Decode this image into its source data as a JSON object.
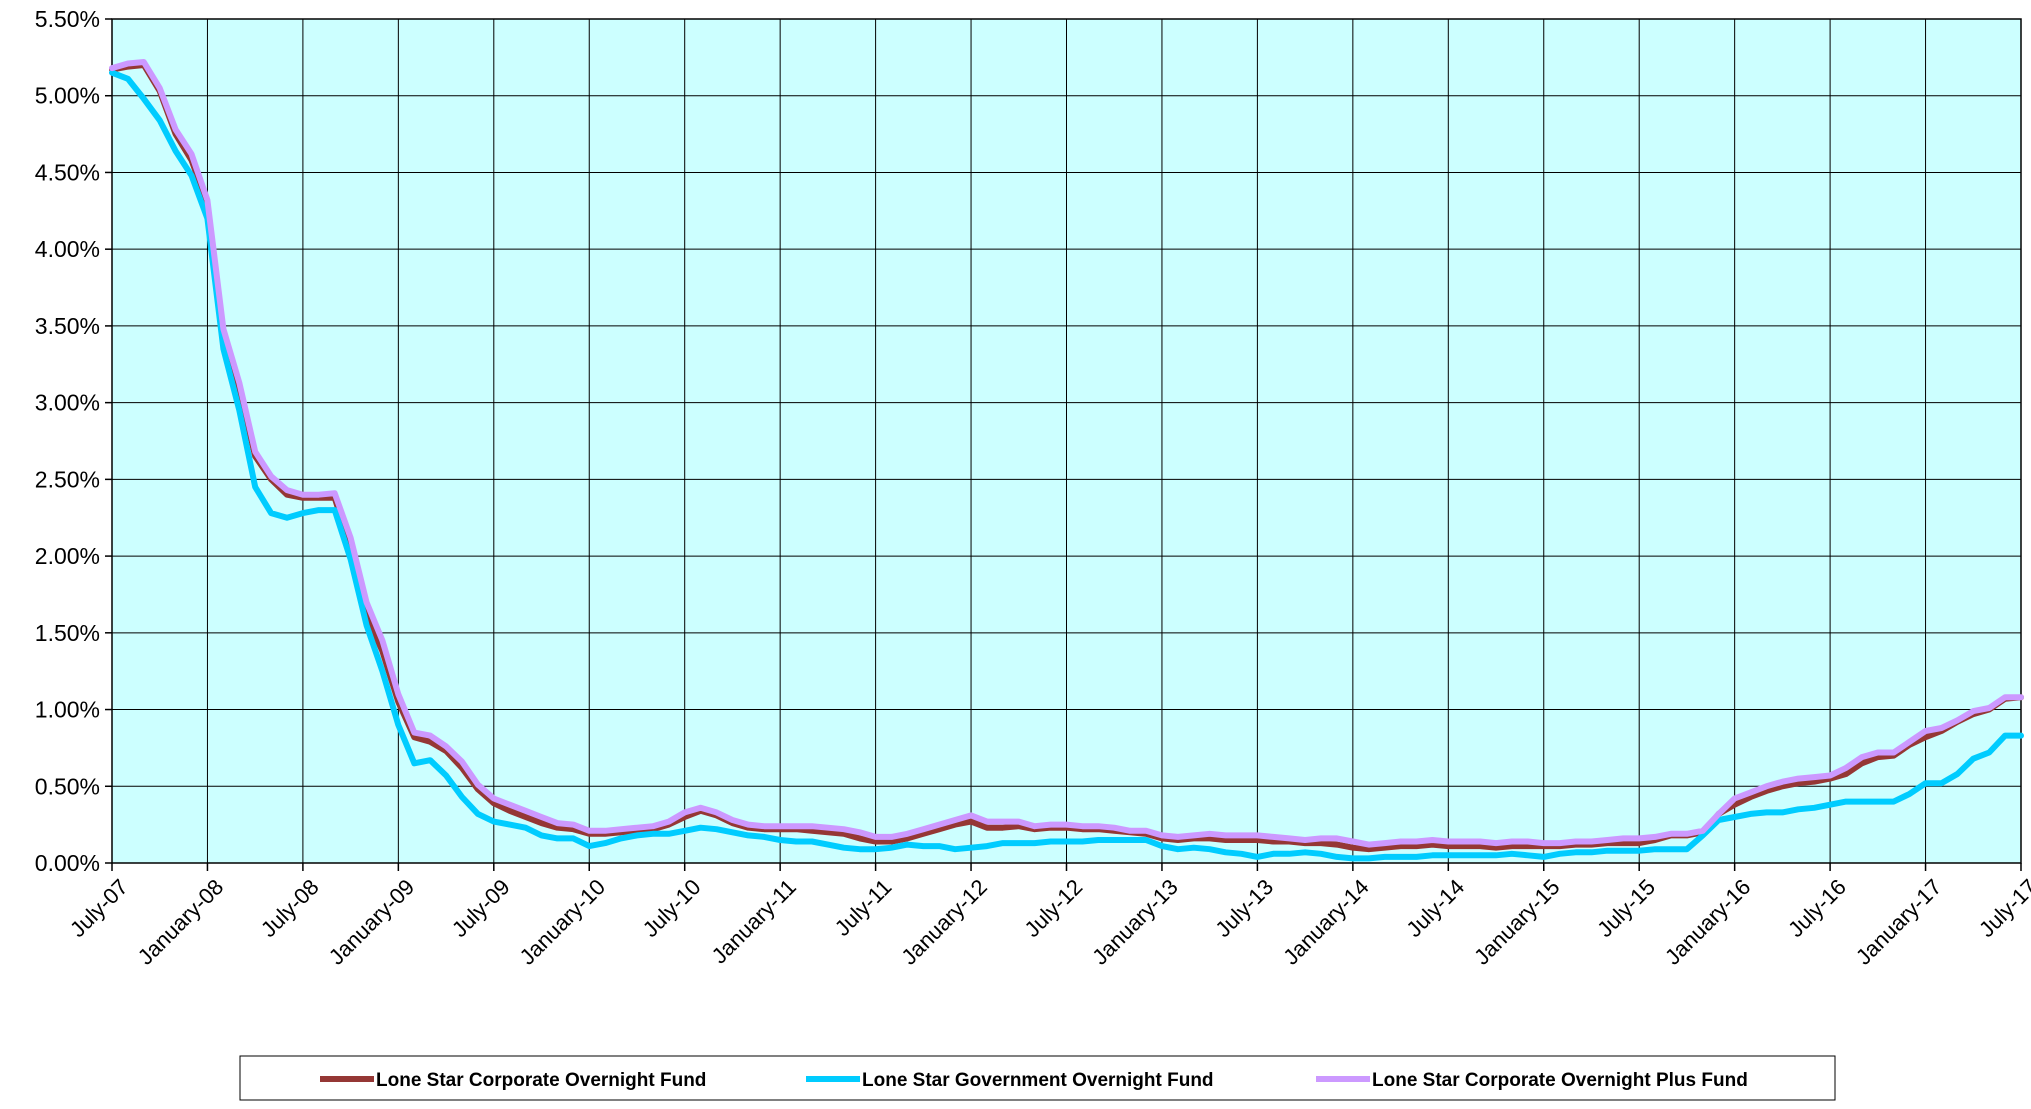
{
  "chart_data": {
    "type": "line",
    "title": "",
    "xlabel": "",
    "ylabel": "",
    "ylim": [
      0,
      5.5
    ],
    "grid": true,
    "plot_background": "#ccffff",
    "legend_position": "bottom",
    "x_ticks": [
      "July-07",
      "January-08",
      "July-08",
      "January-09",
      "July-09",
      "January-10",
      "July-10",
      "January-11",
      "July-11",
      "January-12",
      "July-12",
      "January-13",
      "July-13",
      "January-14",
      "July-14",
      "January-15",
      "July-15",
      "January-16",
      "July-16",
      "January-17",
      "July-17"
    ],
    "y_ticks": [
      "0.00%",
      "0.50%",
      "1.00%",
      "1.50%",
      "2.00%",
      "2.50%",
      "3.00%",
      "3.50%",
      "4.00%",
      "4.50%",
      "5.00%",
      "5.50%"
    ],
    "series": [
      {
        "name": "Lone Star Corporate Overnight Fund",
        "color": "#953735",
        "values": [
          5.17,
          5.19,
          5.2,
          5.03,
          4.75,
          4.58,
          4.3,
          3.45,
          3.1,
          2.65,
          2.5,
          2.4,
          2.38,
          2.38,
          2.38,
          2.05,
          1.62,
          1.38,
          1.05,
          0.82,
          0.79,
          0.73,
          0.62,
          0.48,
          0.39,
          0.34,
          0.3,
          0.26,
          0.23,
          0.22,
          0.19,
          0.19,
          0.2,
          0.21,
          0.22,
          0.25,
          0.3,
          0.34,
          0.31,
          0.26,
          0.23,
          0.22,
          0.22,
          0.22,
          0.21,
          0.2,
          0.19,
          0.16,
          0.14,
          0.14,
          0.16,
          0.19,
          0.22,
          0.25,
          0.27,
          0.23,
          0.23,
          0.24,
          0.22,
          0.23,
          0.23,
          0.22,
          0.22,
          0.21,
          0.2,
          0.19,
          0.16,
          0.15,
          0.16,
          0.16,
          0.15,
          0.15,
          0.15,
          0.14,
          0.14,
          0.13,
          0.13,
          0.12,
          0.1,
          0.09,
          0.1,
          0.11,
          0.11,
          0.12,
          0.11,
          0.11,
          0.11,
          0.1,
          0.11,
          0.11,
          0.11,
          0.11,
          0.12,
          0.12,
          0.13,
          0.13,
          0.13,
          0.15,
          0.18,
          0.18,
          0.2,
          0.32,
          0.38,
          0.43,
          0.47,
          0.5,
          0.52,
          0.53,
          0.55,
          0.58,
          0.65,
          0.69,
          0.7,
          0.77,
          0.82,
          0.86,
          0.92,
          0.97,
          1.0,
          1.07,
          1.08
        ]
      },
      {
        "name": "Lone Star Government Overnight Fund",
        "color": "#00ccff",
        "values": [
          5.15,
          5.11,
          4.98,
          4.84,
          4.64,
          4.48,
          4.2,
          3.35,
          2.95,
          2.45,
          2.28,
          2.25,
          2.28,
          2.3,
          2.3,
          1.98,
          1.55,
          1.25,
          0.9,
          0.65,
          0.67,
          0.57,
          0.43,
          0.32,
          0.27,
          0.25,
          0.23,
          0.18,
          0.16,
          0.16,
          0.11,
          0.13,
          0.16,
          0.18,
          0.19,
          0.19,
          0.21,
          0.23,
          0.22,
          0.2,
          0.18,
          0.17,
          0.15,
          0.14,
          0.14,
          0.12,
          0.1,
          0.09,
          0.09,
          0.1,
          0.12,
          0.11,
          0.11,
          0.09,
          0.1,
          0.11,
          0.13,
          0.13,
          0.13,
          0.14,
          0.14,
          0.14,
          0.15,
          0.15,
          0.15,
          0.15,
          0.11,
          0.09,
          0.1,
          0.09,
          0.07,
          0.06,
          0.04,
          0.06,
          0.06,
          0.07,
          0.06,
          0.04,
          0.03,
          0.03,
          0.04,
          0.04,
          0.04,
          0.05,
          0.05,
          0.05,
          0.05,
          0.05,
          0.06,
          0.05,
          0.04,
          0.06,
          0.07,
          0.07,
          0.08,
          0.08,
          0.08,
          0.09,
          0.09,
          0.09,
          0.18,
          0.28,
          0.3,
          0.32,
          0.33,
          0.33,
          0.35,
          0.36,
          0.38,
          0.4,
          0.4,
          0.4,
          0.4,
          0.45,
          0.52,
          0.52,
          0.58,
          0.68,
          0.72,
          0.83,
          0.83
        ]
      },
      {
        "name": "Lone Star Corporate Overnight Plus Fund",
        "color": "#cc99ff",
        "values": [
          5.18,
          5.21,
          5.22,
          5.05,
          4.78,
          4.62,
          4.32,
          3.48,
          3.13,
          2.68,
          2.52,
          2.43,
          2.4,
          2.4,
          2.41,
          2.12,
          1.7,
          1.45,
          1.1,
          0.85,
          0.83,
          0.76,
          0.66,
          0.51,
          0.42,
          0.38,
          0.34,
          0.3,
          0.26,
          0.25,
          0.21,
          0.21,
          0.22,
          0.23,
          0.24,
          0.27,
          0.33,
          0.36,
          0.33,
          0.28,
          0.25,
          0.24,
          0.24,
          0.24,
          0.24,
          0.23,
          0.22,
          0.2,
          0.17,
          0.17,
          0.19,
          0.22,
          0.25,
          0.28,
          0.31,
          0.27,
          0.27,
          0.27,
          0.24,
          0.25,
          0.25,
          0.24,
          0.24,
          0.23,
          0.21,
          0.21,
          0.18,
          0.17,
          0.18,
          0.19,
          0.18,
          0.18,
          0.18,
          0.17,
          0.16,
          0.15,
          0.16,
          0.16,
          0.14,
          0.12,
          0.13,
          0.14,
          0.14,
          0.15,
          0.14,
          0.14,
          0.14,
          0.13,
          0.14,
          0.14,
          0.13,
          0.13,
          0.14,
          0.14,
          0.15,
          0.16,
          0.16,
          0.17,
          0.19,
          0.19,
          0.21,
          0.32,
          0.42,
          0.46,
          0.5,
          0.53,
          0.55,
          0.56,
          0.57,
          0.62,
          0.69,
          0.72,
          0.72,
          0.79,
          0.86,
          0.88,
          0.93,
          0.99,
          1.01,
          1.08,
          1.08
        ]
      }
    ]
  }
}
